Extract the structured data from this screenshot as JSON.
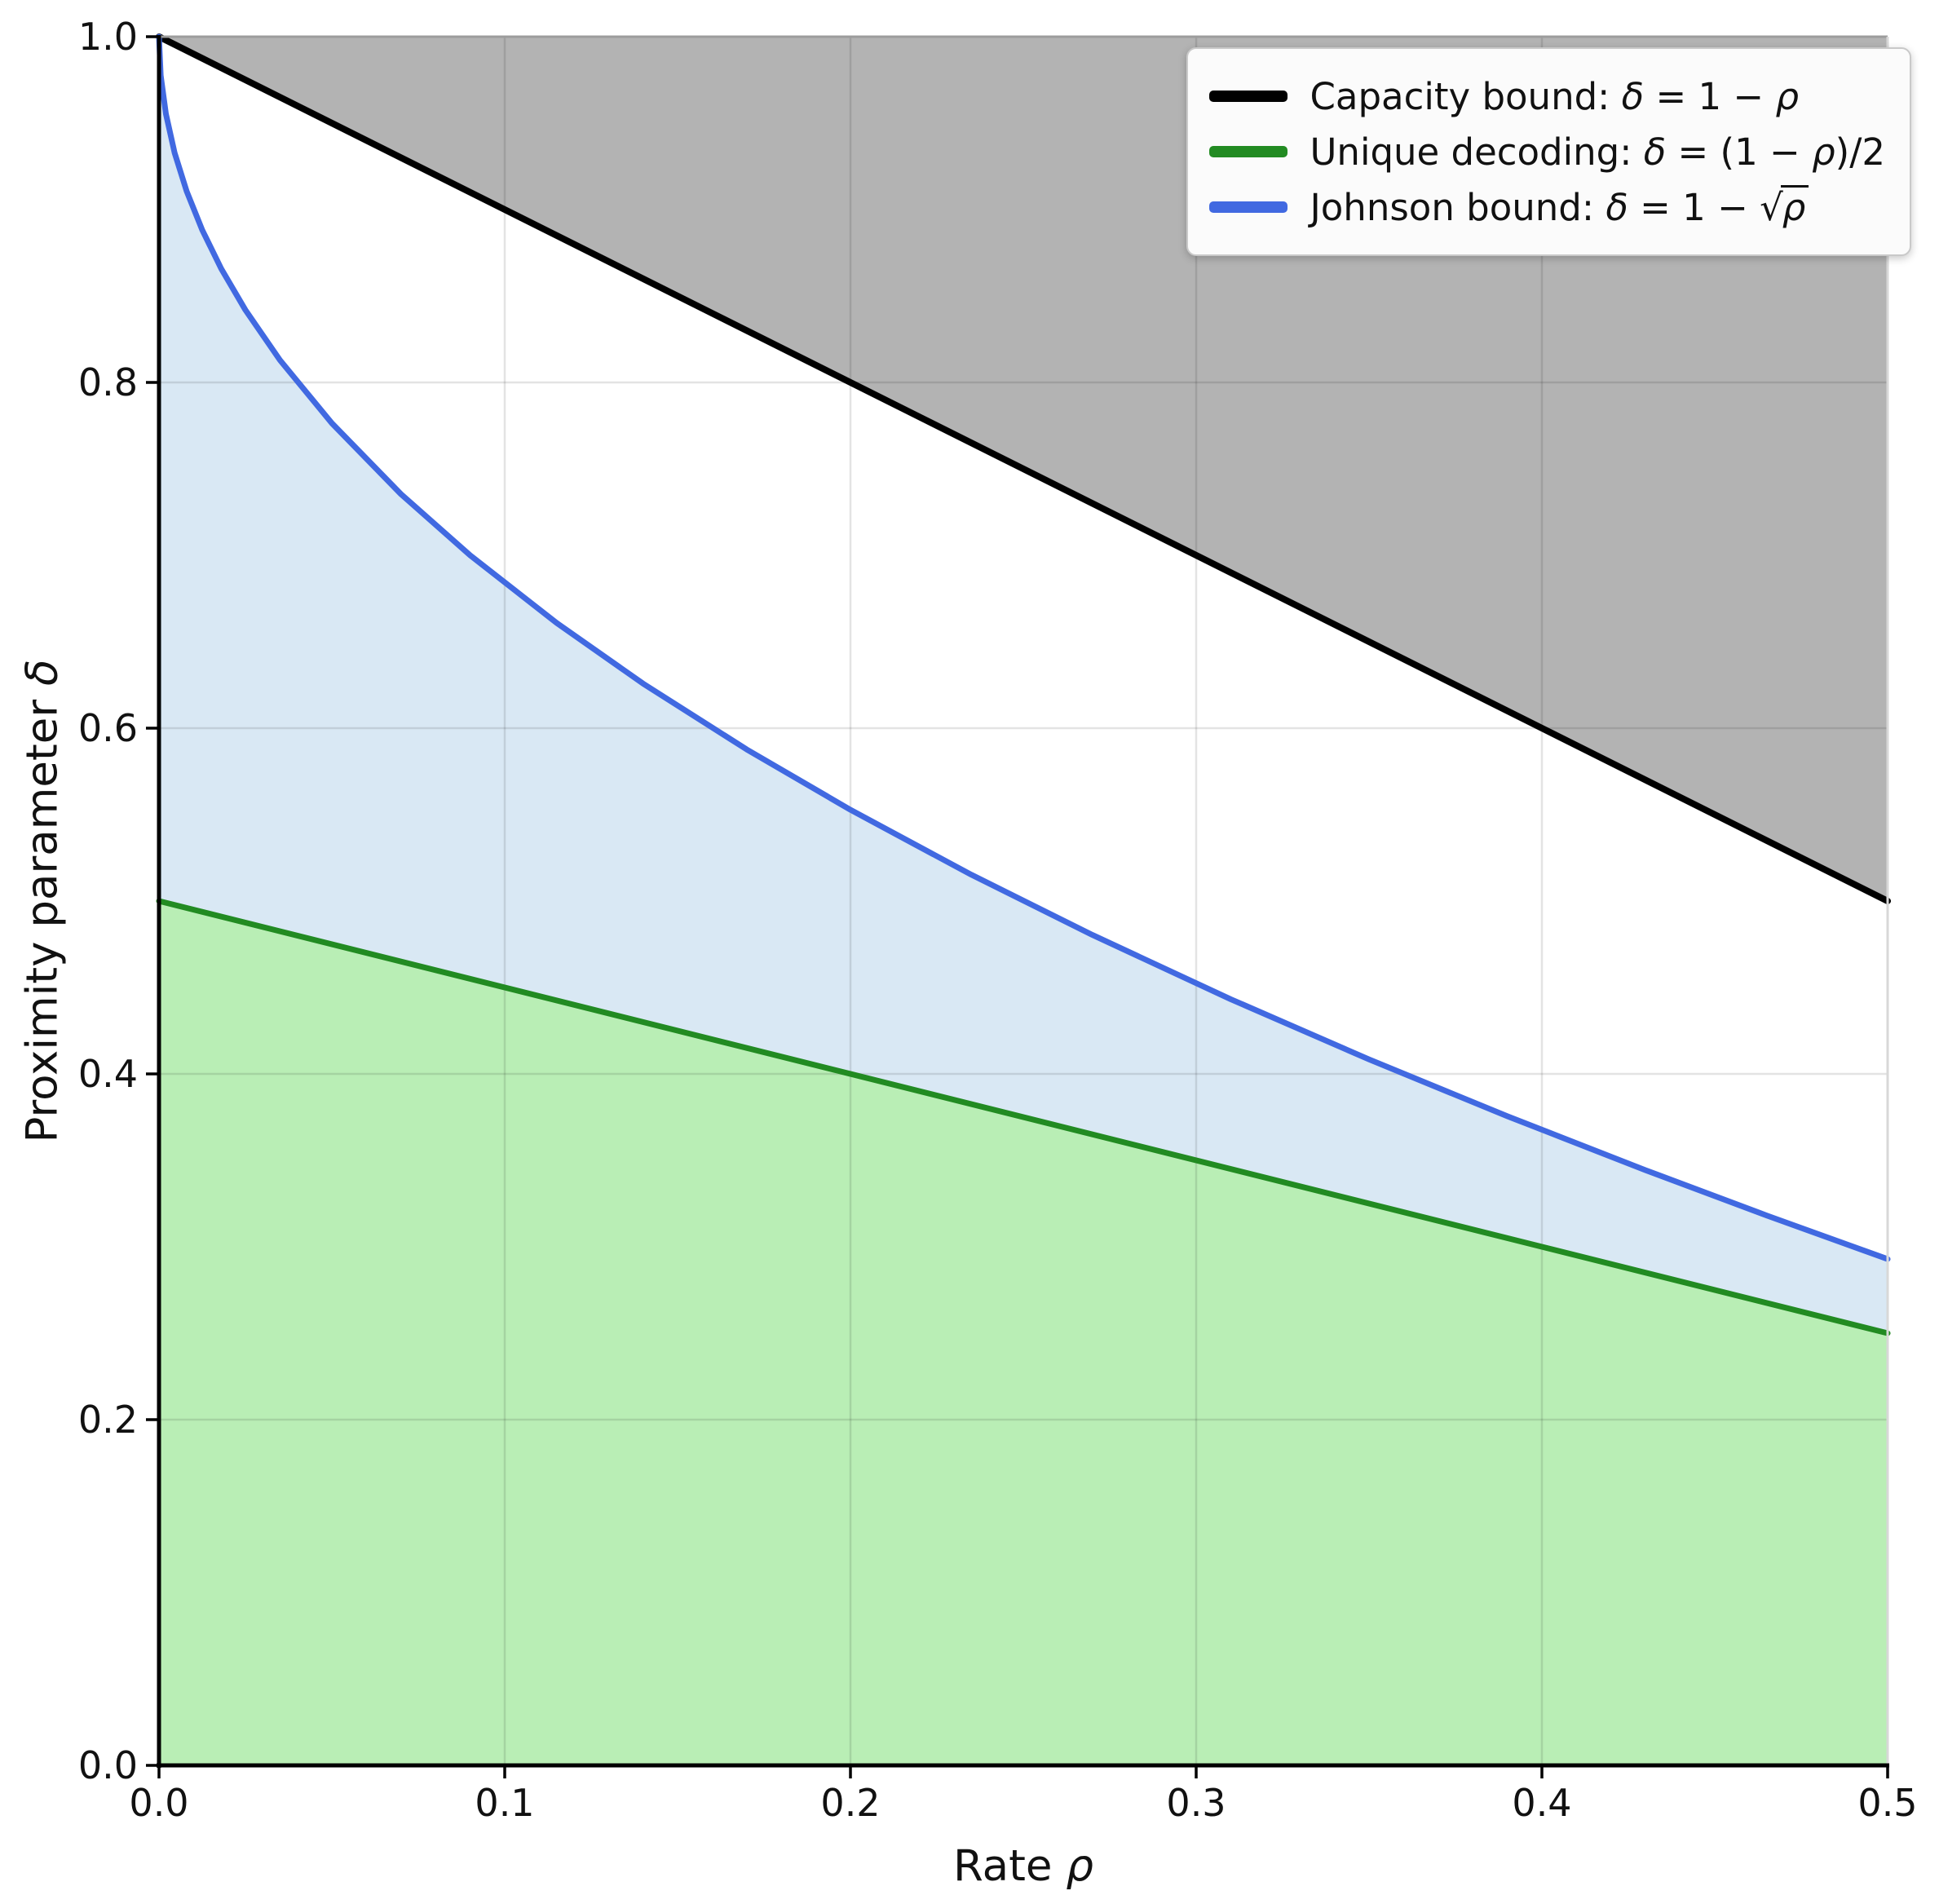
{
  "figure": {
    "background": "#ffffff"
  },
  "chart_data": {
    "type": "line",
    "title": "",
    "xlabel": "Rate ρ",
    "ylabel": "Proximity parameter δ",
    "xlim": [
      0.0,
      0.5
    ],
    "ylim": [
      0.0,
      1.0
    ],
    "grid": true,
    "legend_position": "upper right",
    "x_ticks": {
      "values": [
        0.0,
        0.1,
        0.2,
        0.3,
        0.4,
        0.5
      ],
      "labels": [
        "0.0",
        "0.1",
        "0.2",
        "0.3",
        "0.4",
        "0.5"
      ]
    },
    "y_ticks": {
      "values": [
        0.0,
        0.2,
        0.4,
        0.6,
        0.8,
        1.0
      ],
      "labels": [
        "0.0",
        "0.2",
        "0.4",
        "0.6",
        "0.8",
        "1.0"
      ]
    },
    "series": [
      {
        "name": "capacity-bound",
        "label": "Capacity bound: δ = 1 − ρ",
        "radicand": "",
        "color": "#000000",
        "width": 8,
        "x": [
          0.0,
          0.5
        ],
        "y": [
          1.0,
          0.5
        ]
      },
      {
        "name": "unique-decoding",
        "label": "Unique decoding: δ = (1 − ρ)/2",
        "radicand": "",
        "color": "#228b22",
        "width": 7,
        "x": [
          0.0,
          0.5
        ],
        "y": [
          0.5,
          0.25
        ]
      },
      {
        "name": "johnson-bound",
        "label": "Johnson bound: δ = 1 − √",
        "radicand": "ρ",
        "color": "#4169e1",
        "width": 7,
        "x": [
          0.0,
          0.0005,
          0.002,
          0.0045,
          0.008,
          0.0125,
          0.018,
          0.025,
          0.035,
          0.05,
          0.07,
          0.09,
          0.115,
          0.14,
          0.17,
          0.2,
          0.235,
          0.27,
          0.31,
          0.35,
          0.39,
          0.43,
          0.465,
          0.5
        ],
        "y": [
          1.0,
          0.9776,
          0.9553,
          0.9329,
          0.9106,
          0.8882,
          0.8658,
          0.8419,
          0.8129,
          0.7764,
          0.7354,
          0.7,
          0.6609,
          0.6258,
          0.5877,
          0.5528,
          0.5152,
          0.4804,
          0.4432,
          0.4084,
          0.3755,
          0.3443,
          0.3181,
          0.2929
        ]
      }
    ],
    "regions": [
      {
        "name": "above-capacity",
        "lower": "capacity-bound",
        "upper": 1.0,
        "fill": "#b3b3b3"
      },
      {
        "name": "list-decoding-region",
        "lower": "unique-decoding",
        "upper": "johnson-bound",
        "fill": "#d9e8f4"
      },
      {
        "name": "unique-decoding-region",
        "lower": 0.0,
        "upper": "unique-decoding",
        "fill": "#b9eeb5"
      }
    ]
  }
}
